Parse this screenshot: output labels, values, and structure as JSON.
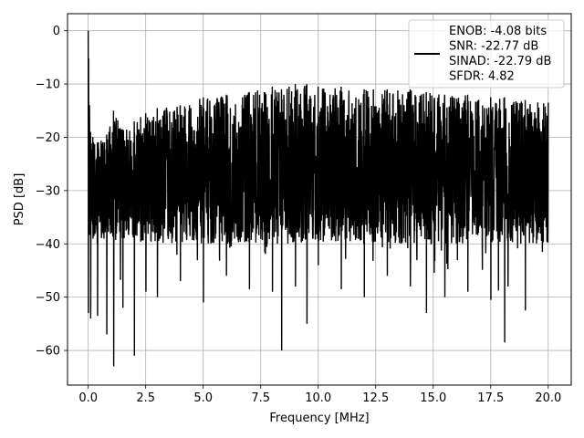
{
  "chart_data": {
    "type": "line",
    "title": "",
    "xlabel": "Frequency [MHz]",
    "ylabel": "PSD [dB]",
    "xlim": [
      -0.9,
      21.0
    ],
    "ylim": [
      -66.5,
      3.2
    ],
    "grid": true,
    "legend_position": "top-right",
    "x_ticks": [
      {
        "value": 0.0,
        "label": "0.0"
      },
      {
        "value": 2.5,
        "label": "2.5"
      },
      {
        "value": 5.0,
        "label": "5.0"
      },
      {
        "value": 7.5,
        "label": "7.5"
      },
      {
        "value": 10.0,
        "label": "10.0"
      },
      {
        "value": 12.5,
        "label": "12.5"
      },
      {
        "value": 15.0,
        "label": "15.0"
      },
      {
        "value": 17.5,
        "label": "17.5"
      },
      {
        "value": 20.0,
        "label": "20.0"
      }
    ],
    "y_ticks": [
      {
        "value": 0,
        "label": "0"
      },
      {
        "value": -10,
        "label": "−10"
      },
      {
        "value": -20,
        "label": "−20"
      },
      {
        "value": -30,
        "label": "−30"
      },
      {
        "value": -40,
        "label": "−40"
      },
      {
        "value": -50,
        "label": "−50"
      },
      {
        "value": -60,
        "label": "−60"
      }
    ],
    "legend": {
      "line_color": "#000000",
      "lines": [
        "ENOB: -4.08 bits",
        "SNR: -22.77 dB",
        "SINAD: -22.79 dB",
        "SFDR: 4.82"
      ]
    },
    "series": [
      {
        "color": "#000000",
        "x_range": [
          0.0,
          20.0
        ],
        "envelope": [
          {
            "x": 0.0,
            "max": 0.0,
            "min": -53.0
          },
          {
            "x": 0.1,
            "max": -19.0,
            "min": -54.0
          },
          {
            "x": 0.4,
            "max": -21.0,
            "min": -53.5
          },
          {
            "x": 0.8,
            "max": -19.5,
            "min": -57.0
          },
          {
            "x": 1.1,
            "max": -15.0,
            "min": -63.0
          },
          {
            "x": 1.5,
            "max": -18.5,
            "min": -52.0
          },
          {
            "x": 2.0,
            "max": -17.0,
            "min": -61.0
          },
          {
            "x": 2.5,
            "max": -15.5,
            "min": -49.0
          },
          {
            "x": 3.0,
            "max": -14.5,
            "min": -50.0
          },
          {
            "x": 4.0,
            "max": -14.0,
            "min": -47.0
          },
          {
            "x": 5.0,
            "max": -12.5,
            "min": -51.0
          },
          {
            "x": 6.0,
            "max": -12.0,
            "min": -46.0
          },
          {
            "x": 7.0,
            "max": -11.5,
            "min": -48.5
          },
          {
            "x": 8.0,
            "max": -10.5,
            "min": -49.0
          },
          {
            "x": 8.4,
            "max": -11.0,
            "min": -60.0
          },
          {
            "x": 9.0,
            "max": -10.0,
            "min": -48.0
          },
          {
            "x": 9.5,
            "max": -10.0,
            "min": -55.0
          },
          {
            "x": 10.0,
            "max": -10.5,
            "min": -44.0
          },
          {
            "x": 11.0,
            "max": -10.5,
            "min": -48.5
          },
          {
            "x": 12.0,
            "max": -11.0,
            "min": -50.0
          },
          {
            "x": 13.0,
            "max": -11.0,
            "min": -46.0
          },
          {
            "x": 14.0,
            "max": -11.0,
            "min": -48.0
          },
          {
            "x": 14.7,
            "max": -11.5,
            "min": -53.0
          },
          {
            "x": 15.5,
            "max": -12.0,
            "min": -50.0
          },
          {
            "x": 16.5,
            "max": -12.0,
            "min": -49.0
          },
          {
            "x": 17.5,
            "max": -12.5,
            "min": -50.5
          },
          {
            "x": 18.1,
            "max": -12.5,
            "min": -58.5
          },
          {
            "x": 19.0,
            "max": -13.0,
            "min": -52.5
          },
          {
            "x": 20.0,
            "max": -13.5,
            "min": -44.0
          }
        ],
        "median_level": -27.0
      }
    ]
  }
}
